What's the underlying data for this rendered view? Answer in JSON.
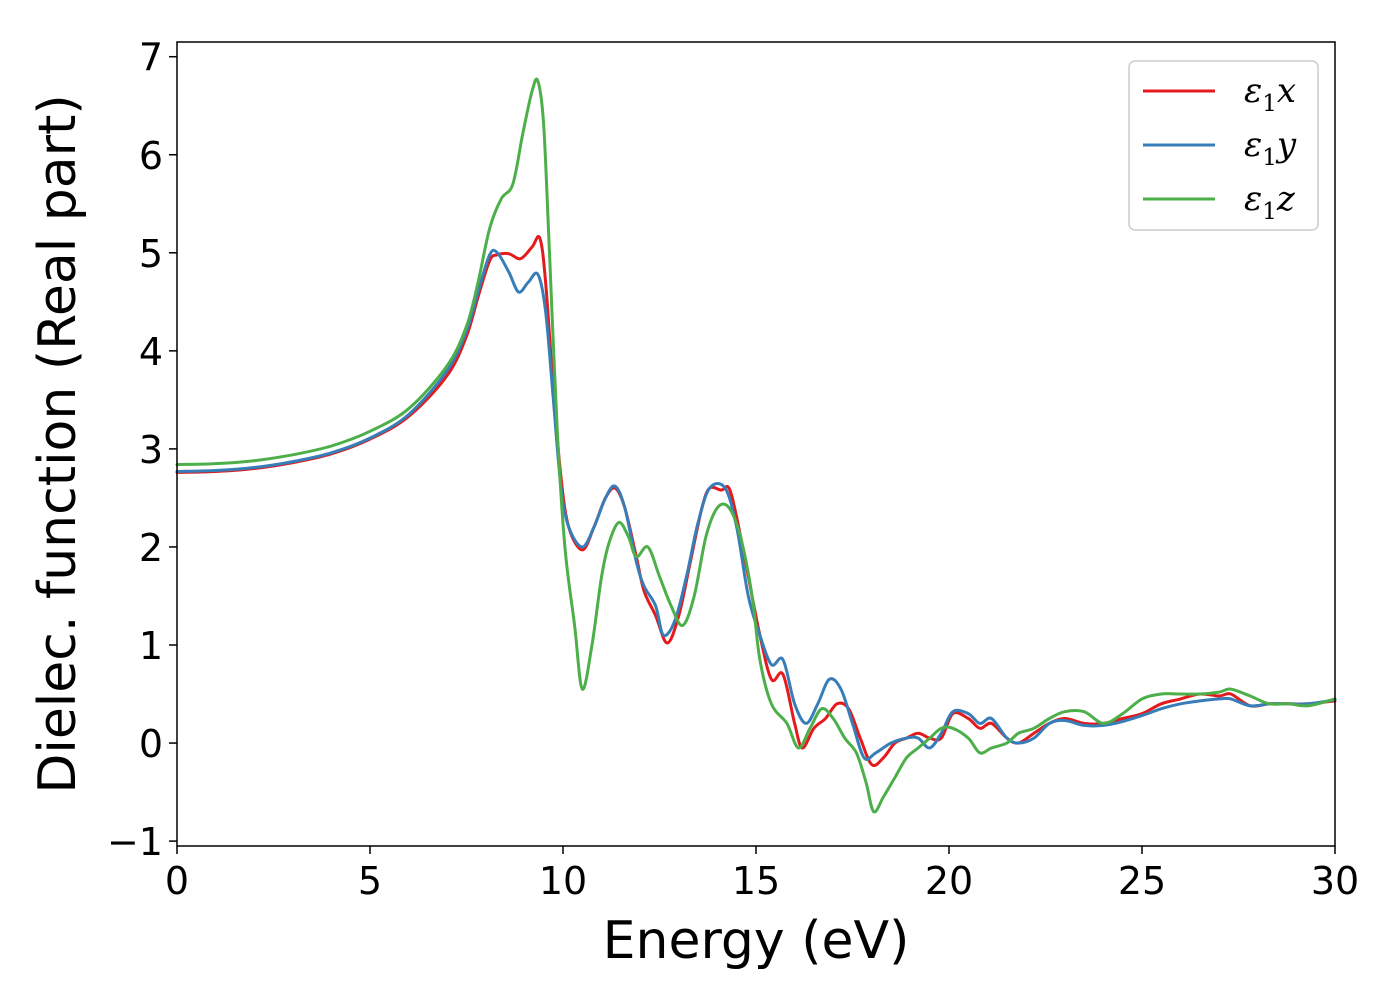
{
  "chart_data": {
    "type": "line",
    "xlabel": "Energy (eV)",
    "ylabel": "Dielec. function (Real part)",
    "xlim": [
      0,
      30
    ],
    "ylim": [
      -1.05,
      7.15
    ],
    "x_ticks": [
      0,
      5,
      10,
      15,
      20,
      25,
      30
    ],
    "y_ticks": [
      -1,
      0,
      1,
      2,
      3,
      4,
      5,
      6,
      7
    ],
    "x_tick_labels": [
      "0",
      "5",
      "10",
      "15",
      "20",
      "25",
      "30"
    ],
    "y_tick_labels": [
      "−1",
      "0",
      "1",
      "2",
      "3",
      "4",
      "5",
      "6",
      "7"
    ],
    "grid": false,
    "legend_position": "top-right",
    "series": [
      {
        "name": "ε₁x",
        "legend_main": "ε",
        "legend_sub": "1",
        "legend_var": "x",
        "color": "#e41a1c",
        "points": [
          [
            0,
            2.76
          ],
          [
            1,
            2.77
          ],
          [
            2,
            2.8
          ],
          [
            3,
            2.86
          ],
          [
            4,
            2.95
          ],
          [
            5,
            3.1
          ],
          [
            6,
            3.33
          ],
          [
            7,
            3.75
          ],
          [
            7.5,
            4.15
          ],
          [
            7.8,
            4.55
          ],
          [
            8.1,
            4.92
          ],
          [
            8.3,
            4.98
          ],
          [
            8.6,
            4.99
          ],
          [
            8.9,
            4.94
          ],
          [
            9.2,
            5.06
          ],
          [
            9.4,
            5.15
          ],
          [
            9.55,
            4.7
          ],
          [
            9.75,
            3.6
          ],
          [
            9.95,
            2.7
          ],
          [
            10.15,
            2.2
          ],
          [
            10.5,
            1.97
          ],
          [
            10.8,
            2.2
          ],
          [
            11.1,
            2.5
          ],
          [
            11.35,
            2.6
          ],
          [
            11.6,
            2.4
          ],
          [
            11.9,
            1.9
          ],
          [
            12.1,
            1.55
          ],
          [
            12.4,
            1.3
          ],
          [
            12.7,
            1.02
          ],
          [
            13.0,
            1.3
          ],
          [
            13.3,
            1.85
          ],
          [
            13.6,
            2.4
          ],
          [
            13.8,
            2.6
          ],
          [
            14.1,
            2.58
          ],
          [
            14.3,
            2.6
          ],
          [
            14.5,
            2.3
          ],
          [
            14.8,
            1.7
          ],
          [
            15.1,
            1.1
          ],
          [
            15.4,
            0.65
          ],
          [
            15.7,
            0.7
          ],
          [
            16.0,
            0.2
          ],
          [
            16.2,
            -0.05
          ],
          [
            16.5,
            0.15
          ],
          [
            16.8,
            0.25
          ],
          [
            17.1,
            0.4
          ],
          [
            17.4,
            0.35
          ],
          [
            17.7,
            0.05
          ],
          [
            18.0,
            -0.22
          ],
          [
            18.3,
            -0.15
          ],
          [
            18.6,
            0.0
          ],
          [
            18.9,
            0.05
          ],
          [
            19.2,
            0.1
          ],
          [
            19.5,
            0.05
          ],
          [
            19.8,
            0.05
          ],
          [
            20.1,
            0.3
          ],
          [
            20.5,
            0.25
          ],
          [
            20.8,
            0.15
          ],
          [
            21.1,
            0.2
          ],
          [
            21.5,
            0.05
          ],
          [
            21.8,
            0.0
          ],
          [
            22.2,
            0.1
          ],
          [
            22.6,
            0.2
          ],
          [
            23.0,
            0.25
          ],
          [
            23.5,
            0.2
          ],
          [
            24.0,
            0.2
          ],
          [
            24.5,
            0.25
          ],
          [
            25.0,
            0.3
          ],
          [
            25.5,
            0.4
          ],
          [
            26.0,
            0.45
          ],
          [
            26.5,
            0.5
          ],
          [
            27.0,
            0.48
          ],
          [
            27.3,
            0.5
          ],
          [
            27.8,
            0.38
          ],
          [
            28.3,
            0.4
          ],
          [
            28.8,
            0.4
          ],
          [
            29.3,
            0.4
          ],
          [
            30,
            0.43
          ]
        ]
      },
      {
        "name": "ε₁y",
        "legend_main": "ε",
        "legend_sub": "1",
        "legend_var": "y",
        "color": "#377eb8",
        "points": [
          [
            0,
            2.77
          ],
          [
            1,
            2.78
          ],
          [
            2,
            2.81
          ],
          [
            3,
            2.87
          ],
          [
            4,
            2.96
          ],
          [
            5,
            3.11
          ],
          [
            6,
            3.35
          ],
          [
            7,
            3.8
          ],
          [
            7.5,
            4.2
          ],
          [
            7.8,
            4.6
          ],
          [
            8.1,
            4.98
          ],
          [
            8.3,
            5.0
          ],
          [
            8.6,
            4.8
          ],
          [
            8.85,
            4.6
          ],
          [
            9.1,
            4.7
          ],
          [
            9.35,
            4.78
          ],
          [
            9.55,
            4.4
          ],
          [
            9.75,
            3.5
          ],
          [
            9.95,
            2.6
          ],
          [
            10.15,
            2.2
          ],
          [
            10.5,
            2.0
          ],
          [
            10.8,
            2.2
          ],
          [
            11.1,
            2.5
          ],
          [
            11.35,
            2.62
          ],
          [
            11.6,
            2.4
          ],
          [
            11.9,
            1.85
          ],
          [
            12.1,
            1.6
          ],
          [
            12.4,
            1.4
          ],
          [
            12.6,
            1.1
          ],
          [
            12.9,
            1.25
          ],
          [
            13.2,
            1.7
          ],
          [
            13.5,
            2.25
          ],
          [
            13.8,
            2.6
          ],
          [
            14.2,
            2.6
          ],
          [
            14.5,
            2.2
          ],
          [
            14.8,
            1.5
          ],
          [
            15.1,
            1.1
          ],
          [
            15.4,
            0.8
          ],
          [
            15.7,
            0.85
          ],
          [
            16.0,
            0.4
          ],
          [
            16.3,
            0.2
          ],
          [
            16.6,
            0.4
          ],
          [
            16.9,
            0.65
          ],
          [
            17.2,
            0.55
          ],
          [
            17.5,
            0.2
          ],
          [
            17.8,
            -0.15
          ],
          [
            18.1,
            -0.1
          ],
          [
            18.5,
            0.0
          ],
          [
            18.9,
            0.05
          ],
          [
            19.2,
            0.05
          ],
          [
            19.5,
            -0.05
          ],
          [
            19.8,
            0.1
          ],
          [
            20.1,
            0.32
          ],
          [
            20.5,
            0.3
          ],
          [
            20.8,
            0.2
          ],
          [
            21.1,
            0.25
          ],
          [
            21.5,
            0.05
          ],
          [
            21.8,
            0.0
          ],
          [
            22.2,
            0.05
          ],
          [
            22.6,
            0.2
          ],
          [
            23.0,
            0.23
          ],
          [
            23.5,
            0.18
          ],
          [
            24.0,
            0.18
          ],
          [
            24.5,
            0.22
          ],
          [
            25.0,
            0.28
          ],
          [
            25.5,
            0.35
          ],
          [
            26.0,
            0.4
          ],
          [
            26.5,
            0.43
          ],
          [
            27.0,
            0.45
          ],
          [
            27.3,
            0.45
          ],
          [
            27.8,
            0.38
          ],
          [
            28.3,
            0.4
          ],
          [
            28.8,
            0.4
          ],
          [
            29.3,
            0.4
          ],
          [
            30,
            0.44
          ]
        ]
      },
      {
        "name": "ε₁z",
        "legend_main": "ε",
        "legend_sub": "1",
        "legend_var": "z",
        "color": "#4daf4a",
        "points": [
          [
            0,
            2.84
          ],
          [
            1,
            2.85
          ],
          [
            2,
            2.88
          ],
          [
            3,
            2.94
          ],
          [
            4,
            3.03
          ],
          [
            5,
            3.18
          ],
          [
            6,
            3.41
          ],
          [
            7,
            3.85
          ],
          [
            7.5,
            4.25
          ],
          [
            7.8,
            4.7
          ],
          [
            8.1,
            5.25
          ],
          [
            8.4,
            5.55
          ],
          [
            8.7,
            5.7
          ],
          [
            8.95,
            6.2
          ],
          [
            9.2,
            6.65
          ],
          [
            9.35,
            6.75
          ],
          [
            9.5,
            6.3
          ],
          [
            9.65,
            5.0
          ],
          [
            9.85,
            3.2
          ],
          [
            10.05,
            2.0
          ],
          [
            10.3,
            1.2
          ],
          [
            10.5,
            0.55
          ],
          [
            10.75,
            1.0
          ],
          [
            11.0,
            1.7
          ],
          [
            11.2,
            2.05
          ],
          [
            11.45,
            2.25
          ],
          [
            11.7,
            2.1
          ],
          [
            11.9,
            1.9
          ],
          [
            12.2,
            2.0
          ],
          [
            12.5,
            1.7
          ],
          [
            12.8,
            1.4
          ],
          [
            13.1,
            1.2
          ],
          [
            13.4,
            1.5
          ],
          [
            13.7,
            2.1
          ],
          [
            14.0,
            2.4
          ],
          [
            14.3,
            2.4
          ],
          [
            14.6,
            2.1
          ],
          [
            14.9,
            1.5
          ],
          [
            15.1,
            0.85
          ],
          [
            15.4,
            0.4
          ],
          [
            15.8,
            0.2
          ],
          [
            16.1,
            -0.05
          ],
          [
            16.4,
            0.15
          ],
          [
            16.7,
            0.35
          ],
          [
            17.0,
            0.25
          ],
          [
            17.3,
            0.05
          ],
          [
            17.6,
            -0.1
          ],
          [
            17.85,
            -0.4
          ],
          [
            18.05,
            -0.7
          ],
          [
            18.3,
            -0.55
          ],
          [
            18.6,
            -0.35
          ],
          [
            18.9,
            -0.15
          ],
          [
            19.2,
            -0.05
          ],
          [
            19.5,
            0.05
          ],
          [
            19.8,
            0.15
          ],
          [
            20.1,
            0.15
          ],
          [
            20.5,
            0.05
          ],
          [
            20.8,
            -0.1
          ],
          [
            21.1,
            -0.05
          ],
          [
            21.5,
            0.0
          ],
          [
            21.8,
            0.1
          ],
          [
            22.2,
            0.15
          ],
          [
            22.6,
            0.25
          ],
          [
            23.0,
            0.32
          ],
          [
            23.5,
            0.32
          ],
          [
            24.0,
            0.2
          ],
          [
            24.5,
            0.3
          ],
          [
            25.0,
            0.45
          ],
          [
            25.5,
            0.5
          ],
          [
            26.0,
            0.5
          ],
          [
            26.5,
            0.5
          ],
          [
            27.0,
            0.52
          ],
          [
            27.3,
            0.55
          ],
          [
            27.8,
            0.48
          ],
          [
            28.3,
            0.4
          ],
          [
            28.8,
            0.4
          ],
          [
            29.3,
            0.38
          ],
          [
            30,
            0.45
          ]
        ]
      }
    ]
  }
}
